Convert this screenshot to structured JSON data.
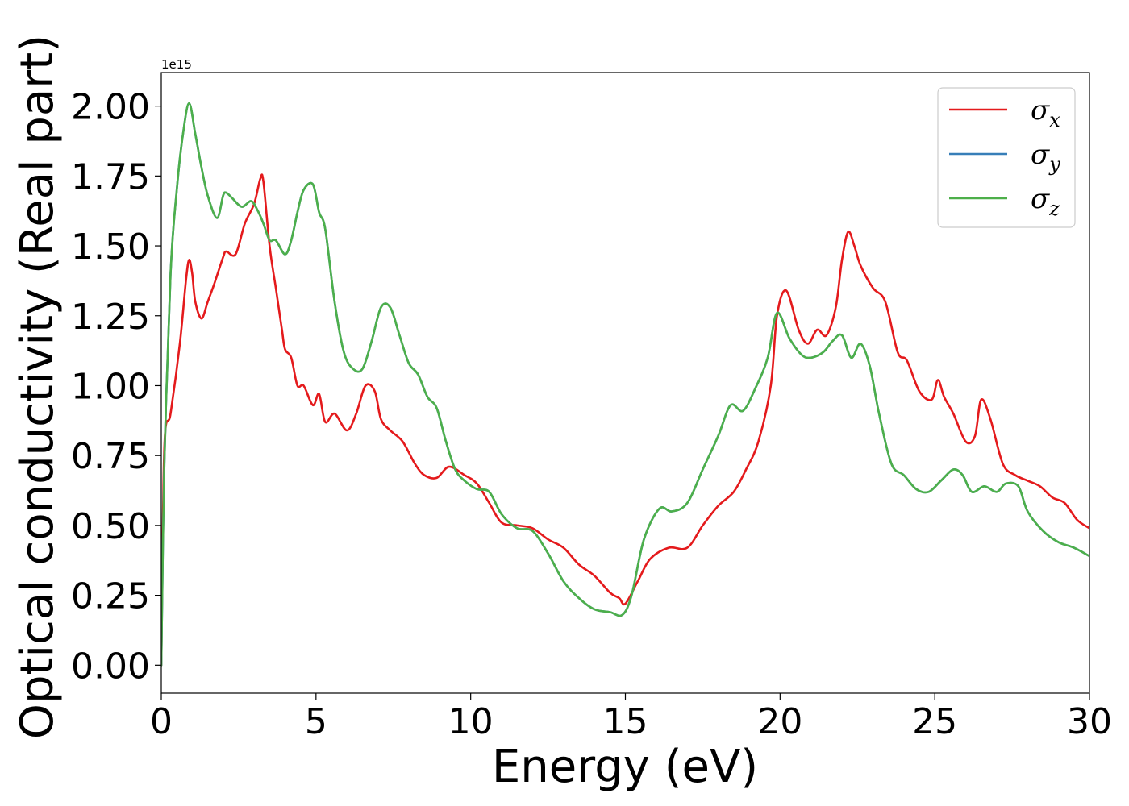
{
  "chart_data": {
    "type": "line",
    "title": "",
    "xlabel": "Energy (eV)",
    "ylabel": "Optical conductivity (Real part)",
    "y_offset_text": "1e15",
    "y_multiplier": 1000000000000000.0,
    "xlim": [
      0,
      30
    ],
    "ylim": [
      -0.1,
      2.12
    ],
    "xticks": [
      0,
      5,
      10,
      15,
      20,
      25,
      30
    ],
    "xtick_labels": [
      "0",
      "5",
      "10",
      "15",
      "20",
      "25",
      "30"
    ],
    "yticks": [
      0.0,
      0.25,
      0.5,
      0.75,
      1.0,
      1.25,
      1.5,
      1.75,
      2.0
    ],
    "ytick_labels": [
      "0.00",
      "0.25",
      "0.50",
      "0.75",
      "1.00",
      "1.25",
      "1.50",
      "1.75",
      "2.00"
    ],
    "grid": false,
    "legend_position": "top-right",
    "series": [
      {
        "name": "σ",
        "subscript": "x",
        "color": "#e41a1c",
        "x": [
          0,
          0.1,
          0.3,
          0.6,
          0.8,
          0.9,
          1.0,
          1.1,
          1.3,
          1.5,
          1.7,
          2.0,
          2.1,
          2.4,
          2.7,
          3.0,
          3.2,
          3.3,
          3.5,
          3.7,
          3.9,
          4.0,
          4.2,
          4.4,
          4.6,
          4.9,
          5.1,
          5.3,
          5.6,
          6.0,
          6.3,
          6.6,
          6.9,
          7.1,
          7.4,
          7.8,
          8.2,
          8.5,
          8.9,
          9.3,
          9.8,
          10.2,
          10.6,
          11.0,
          11.5,
          12.0,
          12.5,
          13.0,
          13.5,
          14.0,
          14.5,
          14.8,
          15.0,
          15.4,
          15.8,
          16.4,
          17.0,
          17.5,
          18.0,
          18.5,
          18.9,
          19.3,
          19.7,
          19.9,
          20.2,
          20.6,
          20.9,
          21.2,
          21.5,
          21.8,
          22.0,
          22.2,
          22.4,
          22.6,
          23.0,
          23.4,
          23.8,
          24.1,
          24.5,
          24.9,
          25.1,
          25.3,
          25.6,
          26.0,
          26.3,
          26.5,
          26.8,
          27.2,
          27.6,
          28.0,
          28.4,
          28.8,
          29.2,
          29.6,
          30.0
        ],
        "y": [
          0.0,
          0.78,
          0.9,
          1.15,
          1.38,
          1.45,
          1.4,
          1.3,
          1.24,
          1.3,
          1.36,
          1.46,
          1.48,
          1.47,
          1.58,
          1.65,
          1.74,
          1.73,
          1.5,
          1.35,
          1.2,
          1.13,
          1.1,
          1.0,
          1.0,
          0.93,
          0.97,
          0.87,
          0.9,
          0.84,
          0.9,
          1.0,
          0.98,
          0.88,
          0.84,
          0.8,
          0.72,
          0.68,
          0.67,
          0.71,
          0.68,
          0.65,
          0.58,
          0.51,
          0.5,
          0.49,
          0.45,
          0.42,
          0.36,
          0.32,
          0.26,
          0.24,
          0.22,
          0.3,
          0.38,
          0.42,
          0.42,
          0.5,
          0.57,
          0.62,
          0.7,
          0.8,
          1.0,
          1.25,
          1.34,
          1.2,
          1.15,
          1.2,
          1.18,
          1.28,
          1.45,
          1.55,
          1.5,
          1.43,
          1.35,
          1.3,
          1.12,
          1.09,
          0.98,
          0.95,
          1.02,
          0.96,
          0.9,
          0.8,
          0.82,
          0.95,
          0.88,
          0.72,
          0.68,
          0.66,
          0.64,
          0.6,
          0.58,
          0.52,
          0.49
        ]
      },
      {
        "name": "σ",
        "subscript": "y",
        "color": "#377eb8",
        "x": [
          0,
          0.1,
          0.3,
          0.5,
          0.7,
          0.9,
          1.1,
          1.3,
          1.5,
          1.8,
          2.0,
          2.1,
          2.3,
          2.6,
          2.9,
          3.1,
          3.3,
          3.5,
          3.7,
          4.0,
          4.2,
          4.4,
          4.6,
          4.9,
          5.1,
          5.3,
          5.6,
          5.9,
          6.2,
          6.5,
          6.8,
          7.1,
          7.4,
          7.7,
          8.0,
          8.3,
          8.6,
          8.9,
          9.2,
          9.5,
          9.8,
          10.2,
          10.6,
          11.0,
          11.5,
          12.0,
          12.5,
          13.0,
          13.5,
          14.0,
          14.5,
          14.9,
          15.2,
          15.6,
          16.1,
          16.5,
          17.0,
          17.5,
          18.0,
          18.4,
          18.8,
          19.2,
          19.6,
          19.9,
          20.3,
          20.7,
          21.0,
          21.4,
          21.7,
          22.0,
          22.3,
          22.6,
          22.9,
          23.2,
          23.6,
          24.0,
          24.4,
          24.8,
          25.2,
          25.6,
          25.9,
          26.2,
          26.6,
          27.0,
          27.3,
          27.7,
          28.0,
          28.5,
          29.0,
          29.5,
          30.0
        ],
        "y": [
          0.0,
          0.72,
          1.4,
          1.7,
          1.9,
          2.01,
          1.9,
          1.78,
          1.68,
          1.6,
          1.68,
          1.69,
          1.67,
          1.64,
          1.66,
          1.63,
          1.58,
          1.52,
          1.52,
          1.47,
          1.52,
          1.62,
          1.7,
          1.72,
          1.62,
          1.56,
          1.3,
          1.12,
          1.06,
          1.06,
          1.16,
          1.28,
          1.28,
          1.18,
          1.08,
          1.04,
          0.96,
          0.92,
          0.8,
          0.7,
          0.66,
          0.63,
          0.62,
          0.54,
          0.49,
          0.48,
          0.4,
          0.3,
          0.24,
          0.2,
          0.19,
          0.18,
          0.25,
          0.45,
          0.56,
          0.55,
          0.58,
          0.7,
          0.82,
          0.93,
          0.91,
          0.99,
          1.1,
          1.26,
          1.17,
          1.11,
          1.1,
          1.12,
          1.16,
          1.18,
          1.1,
          1.15,
          1.07,
          0.9,
          0.72,
          0.68,
          0.63,
          0.62,
          0.66,
          0.7,
          0.68,
          0.62,
          0.64,
          0.62,
          0.65,
          0.64,
          0.55,
          0.48,
          0.44,
          0.42,
          0.39
        ]
      },
      {
        "name": "σ",
        "subscript": "z",
        "color": "#4daf4a",
        "x": [
          0,
          0.1,
          0.3,
          0.5,
          0.7,
          0.9,
          1.1,
          1.3,
          1.5,
          1.8,
          2.0,
          2.1,
          2.3,
          2.6,
          2.9,
          3.1,
          3.3,
          3.5,
          3.7,
          4.0,
          4.2,
          4.4,
          4.6,
          4.9,
          5.1,
          5.3,
          5.6,
          5.9,
          6.2,
          6.5,
          6.8,
          7.1,
          7.4,
          7.7,
          8.0,
          8.3,
          8.6,
          8.9,
          9.2,
          9.5,
          9.8,
          10.2,
          10.6,
          11.0,
          11.5,
          12.0,
          12.5,
          13.0,
          13.5,
          14.0,
          14.5,
          14.9,
          15.2,
          15.6,
          16.1,
          16.5,
          17.0,
          17.5,
          18.0,
          18.4,
          18.8,
          19.2,
          19.6,
          19.9,
          20.3,
          20.7,
          21.0,
          21.4,
          21.7,
          22.0,
          22.3,
          22.6,
          22.9,
          23.2,
          23.6,
          24.0,
          24.4,
          24.8,
          25.2,
          25.6,
          25.9,
          26.2,
          26.6,
          27.0,
          27.3,
          27.7,
          28.0,
          28.5,
          29.0,
          29.5,
          30.0
        ],
        "y": [
          0.0,
          0.72,
          1.4,
          1.7,
          1.9,
          2.01,
          1.9,
          1.78,
          1.68,
          1.6,
          1.68,
          1.69,
          1.67,
          1.64,
          1.66,
          1.63,
          1.58,
          1.52,
          1.52,
          1.47,
          1.52,
          1.62,
          1.7,
          1.72,
          1.62,
          1.56,
          1.3,
          1.12,
          1.06,
          1.06,
          1.16,
          1.28,
          1.28,
          1.18,
          1.08,
          1.04,
          0.96,
          0.92,
          0.8,
          0.7,
          0.66,
          0.63,
          0.62,
          0.54,
          0.49,
          0.48,
          0.4,
          0.3,
          0.24,
          0.2,
          0.19,
          0.18,
          0.25,
          0.45,
          0.56,
          0.55,
          0.58,
          0.7,
          0.82,
          0.93,
          0.91,
          0.99,
          1.1,
          1.26,
          1.17,
          1.11,
          1.1,
          1.12,
          1.16,
          1.18,
          1.1,
          1.15,
          1.07,
          0.9,
          0.72,
          0.68,
          0.63,
          0.62,
          0.66,
          0.7,
          0.68,
          0.62,
          0.64,
          0.62,
          0.65,
          0.64,
          0.55,
          0.48,
          0.44,
          0.42,
          0.39
        ]
      }
    ]
  }
}
